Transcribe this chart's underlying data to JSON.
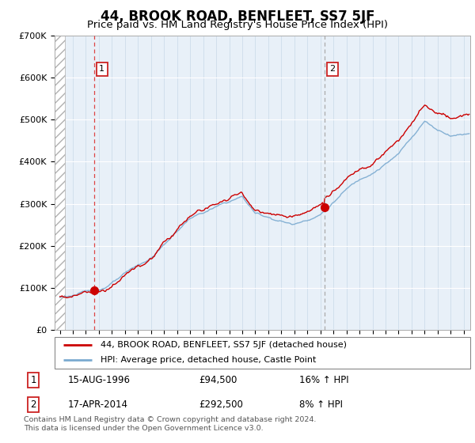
{
  "title": "44, BROOK ROAD, BENFLEET, SS7 5JF",
  "subtitle": "Price paid vs. HM Land Registry's House Price Index (HPI)",
  "title_fontsize": 12,
  "subtitle_fontsize": 9.5,
  "ylim": [
    0,
    700000
  ],
  "yticks": [
    0,
    100000,
    200000,
    300000,
    400000,
    500000,
    600000,
    700000
  ],
  "ytick_labels": [
    "£0",
    "£100K",
    "£200K",
    "£300K",
    "£400K",
    "£500K",
    "£600K",
    "£700K"
  ],
  "xmin": 1993.6,
  "xmax": 2025.5,
  "hatch_end": 1994.42,
  "bg_color": "#e8f0f8",
  "sale1_x": 1996.62,
  "sale1_y": 94500,
  "sale1_label": "1",
  "sale1_date": "15-AUG-1996",
  "sale1_price": "£94,500",
  "sale1_hpi": "16% ↑ HPI",
  "sale2_x": 2014.29,
  "sale2_y": 292500,
  "sale2_label": "2",
  "sale2_date": "17-APR-2014",
  "sale2_price": "£292,500",
  "sale2_hpi": "8% ↑ HPI",
  "legend_line1": "44, BROOK ROAD, BENFLEET, SS7 5JF (detached house)",
  "legend_line2": "HPI: Average price, detached house, Castle Point",
  "footer": "Contains HM Land Registry data © Crown copyright and database right 2024.\nThis data is licensed under the Open Government Licence v3.0.",
  "red_color": "#cc0000",
  "blue_color": "#7aaad0",
  "sale1_vline_color": "#dd4444",
  "sale2_vline_color": "#aaaaaa"
}
